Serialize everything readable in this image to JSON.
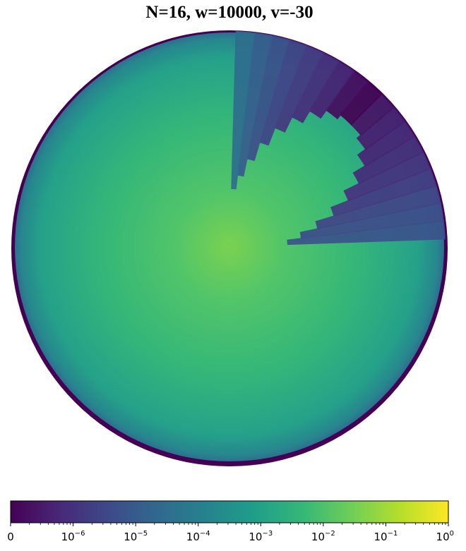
{
  "chart_data": {
    "type": "heatmap",
    "projection": "polar disk",
    "title": "N=16, w=10000, v=-30",
    "colormap": "viridis",
    "colors": {
      "viridis": [
        "#440154",
        "#482878",
        "#3e4989",
        "#31688e",
        "#26828e",
        "#1f9e89",
        "#35b779",
        "#6ece58",
        "#b5de2b",
        "#fde725"
      ],
      "boundary_ring": "#440154"
    },
    "colorbar": {
      "orientation": "horizontal",
      "scale": "log with zero",
      "tick_labels": [
        {
          "base": "0",
          "exp": ""
        },
        {
          "base": "10",
          "exp": "−6"
        },
        {
          "base": "10",
          "exp": "−5"
        },
        {
          "base": "10",
          "exp": "−4"
        },
        {
          "base": "10",
          "exp": "−3"
        },
        {
          "base": "10",
          "exp": "−2"
        },
        {
          "base": "10",
          "exp": "−1"
        },
        {
          "base": "10",
          "exp": "0"
        }
      ],
      "range": [
        0,
        1
      ]
    },
    "field_description": {
      "center_value_approx": 0.01,
      "bulk_value_approx": 0.001,
      "low_sector_angle_range_deg": [
        15,
        80
      ],
      "low_value_approx": 1e-07
    }
  }
}
